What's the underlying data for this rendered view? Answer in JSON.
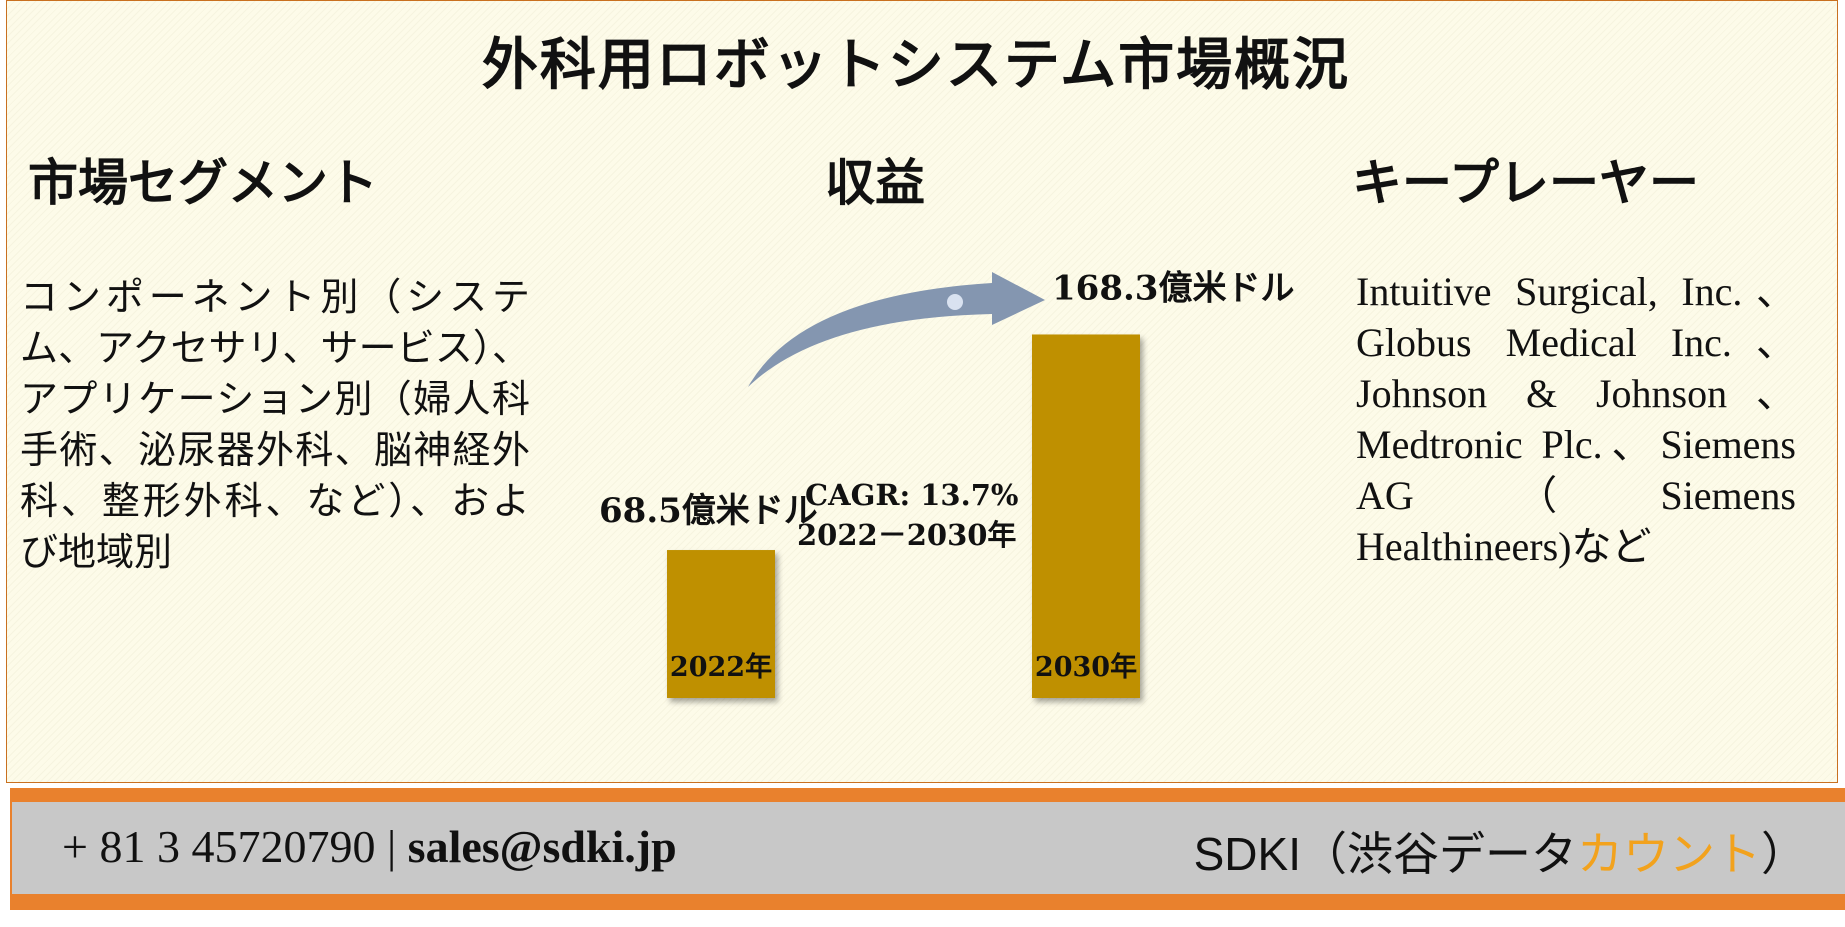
{
  "title": "外科用ロボットシステム市場概況",
  "segments": {
    "heading": "市場セグメント",
    "text": "コンポーネント別（システム、アクセサリ、サービス）、アプリケーション別（婦人科手術、泌尿器外科、脳神経外科、整形外科、など）、および地域別"
  },
  "revenue": {
    "heading": "収益"
  },
  "key_players": {
    "heading": "キープレーヤー",
    "text": "Intuitive Surgical, Inc.、Globus Medical Inc.、Johnson & Johnson、Medtronic Plc.、Siemens AG（Siemens Healthineers)など"
  },
  "chart_data": {
    "type": "bar",
    "categories": [
      "2022年",
      "2030年"
    ],
    "values": [
      68.5,
      168.3
    ],
    "value_labels": [
      "68.5億米ドル",
      "168.3億米ドル"
    ],
    "unit": "億米ドル",
    "annotation": {
      "line1": "CAGR: 13.7%",
      "line2": "2022－2030年"
    },
    "bar_color": "#bf9000",
    "arrow_color": "#8496b0"
  },
  "footer": {
    "phone": "+ 81 3 45720790",
    "separator": "|",
    "email": "sales@sdki.jp",
    "brand_prefix": "SDKI（渋谷データ",
    "brand_accent": "カウント",
    "brand_suffix": "）",
    "accent_color": "#f2a21d",
    "stripe_color": "#e9812d"
  }
}
